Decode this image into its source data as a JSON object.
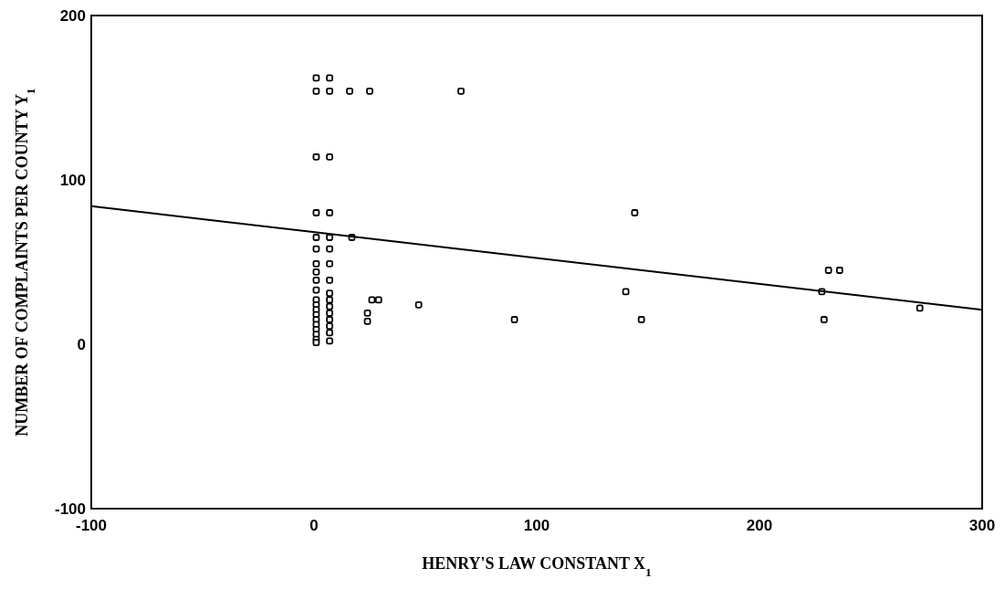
{
  "chart_data": {
    "type": "scatter",
    "xlabel": "HENRY'S LAW CONSTANT X$_{1}$",
    "ylabel": "NUMBER OF COMPLAINTS PER COUNTY Y$_{1}$",
    "xlim": [
      -100,
      300
    ],
    "ylim": [
      -100,
      200
    ],
    "xticks": [
      -100,
      0,
      100,
      200,
      300
    ],
    "yticks": [
      -100,
      0,
      100,
      200
    ],
    "grid": false,
    "series": [
      {
        "color": "#000000",
        "marker": "square",
        "x": [
          1,
          1,
          1,
          1,
          1,
          1,
          1,
          1,
          1,
          1,
          1,
          1,
          1,
          1,
          1,
          1,
          1,
          1,
          1,
          1,
          7,
          7,
          7,
          7,
          7,
          7,
          7,
          7,
          7,
          7,
          7,
          7,
          7,
          7,
          7,
          7,
          16,
          25,
          66,
          17,
          24,
          24,
          26,
          29,
          47,
          90,
          144,
          140,
          147,
          228,
          231,
          236,
          229,
          272
        ],
        "values": [
          162,
          154,
          114,
          80,
          65,
          58,
          49,
          44,
          39,
          33,
          27,
          24,
          21,
          18,
          15,
          12,
          9,
          6,
          3,
          1,
          162,
          154,
          114,
          80,
          65,
          58,
          49,
          39,
          27,
          23,
          19,
          15,
          11,
          7,
          2,
          31,
          154,
          154,
          154,
          65,
          19,
          14,
          27,
          27,
          24,
          15,
          80,
          32,
          15,
          32,
          45,
          45,
          15,
          22
        ]
      },
      {
        "type": "line",
        "color": "#000000",
        "x": [
          -100,
          300
        ],
        "values": [
          84,
          21
        ],
        "marker": "none"
      }
    ]
  }
}
